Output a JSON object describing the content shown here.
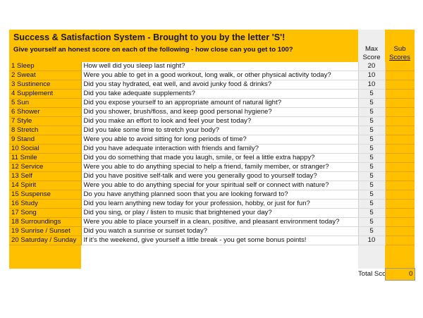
{
  "title": "Success & Satisfaction System - Brought to you by the letter 'S'!",
  "subtitle": "Give yourself an honest score on each of the following - how close can you get to 100?",
  "max_header_1": "Max",
  "max_header_2": "Score",
  "sub_header_1": "Sub",
  "sub_header_2": "Scores",
  "rows": [
    {
      "name": "1 Sleep",
      "question": "How well did you sleep last night?",
      "max": "20",
      "sub": ""
    },
    {
      "name": "2 Sweat",
      "question": "Were you able to get in a good workout, long walk, or other physical activity today?",
      "max": "10",
      "sub": ""
    },
    {
      "name": "3 Sustinence",
      "question": "Did you stay hydrated, eat well, and avoid junky food & drinks?",
      "max": "10",
      "sub": ""
    },
    {
      "name": "4 Supplement",
      "question": "Did you take adequate supplements?",
      "max": "5",
      "sub": ""
    },
    {
      "name": "5 Sun",
      "question": "Did you expose yourself to an appropriate amount of natural light?",
      "max": "5",
      "sub": ""
    },
    {
      "name": "6 Shower",
      "question": "Did you shower, brush/floss, and keep good personal hygiene?",
      "max": "5",
      "sub": ""
    },
    {
      "name": "7 Style",
      "question": "Did you make an effort to look and feel your best today?",
      "max": "5",
      "sub": ""
    },
    {
      "name": "8 Stretch",
      "question": "Did you take some time to stretch your body?",
      "max": "5",
      "sub": ""
    },
    {
      "name": "9 Stand",
      "question": "Were you able to avoid sitting for long periods of time?",
      "max": "5",
      "sub": ""
    },
    {
      "name": "10 Social",
      "question": "Did you have adequate interaction with friends and family?",
      "max": "5",
      "sub": ""
    },
    {
      "name": "11 Smile",
      "question": "Did you do something that made you laugh, smile, or feel a little extra happy?",
      "max": "5",
      "sub": ""
    },
    {
      "name": "12 Service",
      "question": "Were you able to do anything special to help a friend, family member, or stranger?",
      "max": "5",
      "sub": ""
    },
    {
      "name": "13 Self",
      "question": "Did you have positive self-talk and were you generally good to yourself today?",
      "max": "5",
      "sub": ""
    },
    {
      "name": "14 Spirit",
      "question": "Were you able to do anything special for your spiritual self or connect with nature?",
      "max": "5",
      "sub": ""
    },
    {
      "name": "15 Suspense",
      "question": "Do you have anything planned soon that you are looking forward to?",
      "max": "5",
      "sub": ""
    },
    {
      "name": "16 Study",
      "question": "Did you learn anything new today for your profession, hobby, or just for fun?",
      "max": "5",
      "sub": ""
    },
    {
      "name": "17 Song",
      "question": "Did you sing, or play / listen to music that brightened your day?",
      "max": "5",
      "sub": ""
    },
    {
      "name": "18 Surroundings",
      "question": "Were you able to place yourself in a clean, positive, and pleasant environment today?",
      "max": "5",
      "sub": ""
    },
    {
      "name": "19 Sunrise / Sunset",
      "question": "Did you watch a sunrise or sunset today?",
      "max": "5",
      "sub": ""
    },
    {
      "name": "20 Saturday / Sunday",
      "question": "If it's the weekend, give yourself a little break - you get some bonus points!",
      "max": "10",
      "sub": ""
    }
  ],
  "total_label": "Total Score",
  "total_value": "0"
}
